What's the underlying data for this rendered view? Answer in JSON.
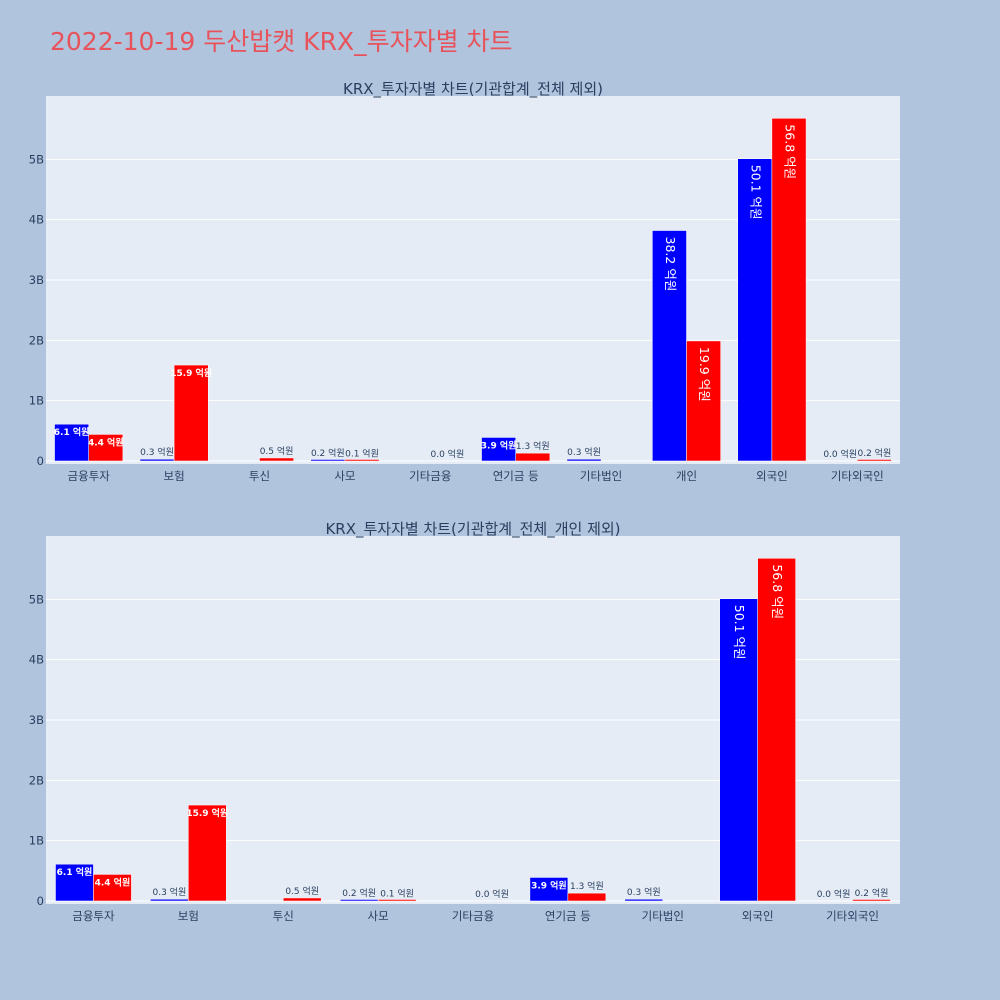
{
  "title": "2022-10-19 두산밥캣 KRX_투자자별 차트",
  "colors": {
    "page_bg": "#b0c4de",
    "plot_bg": "#e5ecf6",
    "grid": "#ffffff",
    "buy": "#0000ff",
    "sell": "#ff0000",
    "text": "#2a3f5f"
  },
  "chart_data": [
    {
      "type": "bar",
      "title": "KRX_투자자별 차트(기관합계_전체 제외)",
      "categories": [
        "금융투자",
        "보험",
        "투신",
        "사모",
        "기타금융",
        "연기금 등",
        "기타법인",
        "개인",
        "외국인",
        "기타외국인"
      ],
      "series": [
        {
          "color": "#0000ff",
          "values": [
            610000000,
            30000000,
            0,
            20000000,
            0,
            390000000,
            30000000,
            3820000000,
            5010000000,
            0
          ],
          "labels": [
            "6.1 억원",
            "0.3 억원",
            "",
            "0.2 억원",
            "",
            "3.9 억원",
            "0.3 억원",
            "38.2 억원",
            "50.1 억원",
            "0.0 억원"
          ]
        },
        {
          "color": "#ff0000",
          "values": [
            440000000,
            1590000000,
            50000000,
            10000000,
            0,
            130000000,
            0,
            1990000000,
            5680000000,
            20000000
          ],
          "labels": [
            "4.4 억원",
            "15.9 억원",
            "0.5 억원",
            "0.1 억원",
            "0.0 억원",
            "1.3 억원",
            "",
            "19.9 억원",
            "56.8 억원",
            "0.2 억원"
          ]
        }
      ],
      "yticks": [
        0,
        1000000000,
        2000000000,
        3000000000,
        4000000000,
        5000000000
      ],
      "yticklabels": [
        "0",
        "1B",
        "2B",
        "3B",
        "4B",
        "5B"
      ],
      "ylim": [
        -50000000,
        6050000000
      ],
      "grid": true,
      "legend": "none"
    },
    {
      "type": "bar",
      "title": "KRX_투자자별 차트(기관합계_전체_개인 제외)",
      "categories": [
        "금융투자",
        "보험",
        "투신",
        "사모",
        "기타금융",
        "연기금 등",
        "기타법인",
        "외국인",
        "기타외국인"
      ],
      "series": [
        {
          "color": "#0000ff",
          "values": [
            610000000,
            30000000,
            0,
            20000000,
            0,
            390000000,
            30000000,
            5010000000,
            0
          ],
          "labels": [
            "6.1 억원",
            "0.3 억원",
            "",
            "0.2 억원",
            "",
            "3.9 억원",
            "0.3 억원",
            "50.1 억원",
            "0.0 억원"
          ]
        },
        {
          "color": "#ff0000",
          "values": [
            440000000,
            1590000000,
            50000000,
            10000000,
            0,
            130000000,
            0,
            5680000000,
            20000000
          ],
          "labels": [
            "4.4 억원",
            "15.9 억원",
            "0.5 억원",
            "0.1 억원",
            "0.0 억원",
            "1.3 억원",
            "",
            "56.8 억원",
            "0.2 억원"
          ]
        }
      ],
      "yticks": [
        0,
        1000000000,
        2000000000,
        3000000000,
        4000000000,
        5000000000
      ],
      "yticklabels": [
        "0",
        "1B",
        "2B",
        "3B",
        "4B",
        "5B"
      ],
      "ylim": [
        -50000000,
        6050000000
      ],
      "grid": true,
      "legend": "none"
    }
  ]
}
